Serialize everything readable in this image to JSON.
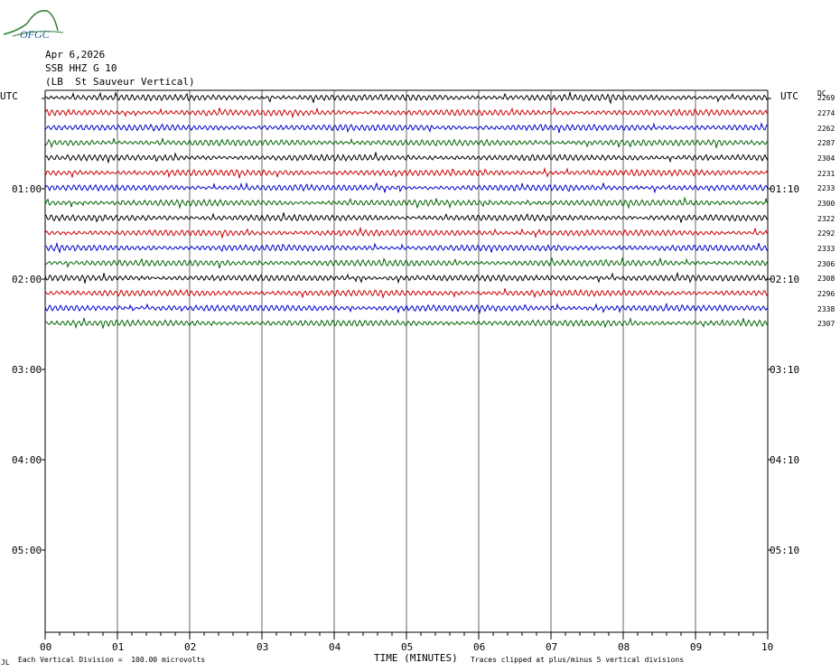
{
  "logo": {
    "text": "OFGC",
    "color": "#2e7d32"
  },
  "header": {
    "date": "Apr 6,2026",
    "station": "SSB HHZ G 10",
    "location": "(LB  St Sauveur Vertical)"
  },
  "utc_left": "UTC",
  "utc_right": "UTC",
  "dc_label": "DC",
  "left_time_labels": [
    "01:00",
    "02:00",
    "03:00",
    "04:00",
    "05:00"
  ],
  "right_time_labels": [
    "01:10",
    "02:10",
    "03:10",
    "04:10",
    "05:10"
  ],
  "x_tick_labels": [
    "00",
    "01",
    "02",
    "03",
    "04",
    "05",
    "06",
    "07",
    "08",
    "09",
    "10"
  ],
  "x_axis_title": "TIME (MINUTES)",
  "footer": {
    "left_mark": "JL",
    "scale_note": "Each Vertical Division =  100.00 microvolts",
    "clip_note": "Traces clipped at plus/minus 5 vertical divisions"
  },
  "chart_data": {
    "type": "line",
    "title": "SSB HHZ G 10",
    "xlabel": "TIME (MINUTES)",
    "xlim": [
      0,
      10
    ],
    "trace_colors": [
      "#000000",
      "#cc0000",
      "#0000cc",
      "#006600"
    ],
    "traces": [
      {
        "dc": "2269"
      },
      {
        "dc": "2274"
      },
      {
        "dc": "2262"
      },
      {
        "dc": "2287"
      },
      {
        "dc": "2304"
      },
      {
        "dc": "2231"
      },
      {
        "dc": "2233"
      },
      {
        "dc": "2300"
      },
      {
        "dc": "2322"
      },
      {
        "dc": "2292"
      },
      {
        "dc": "2333"
      },
      {
        "dc": "2306"
      },
      {
        "dc": "2308"
      },
      {
        "dc": "2296"
      },
      {
        "dc": "2338"
      },
      {
        "dc": "2307"
      }
    ]
  }
}
